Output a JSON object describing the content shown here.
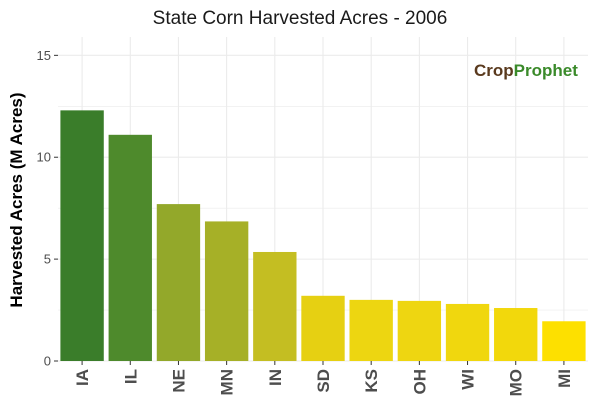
{
  "chart_data": {
    "type": "bar",
    "title": "State Corn Harvested Acres - 2006",
    "xlabel": "",
    "ylabel": "Harvested Acres (M Acres)",
    "categories": [
      "IA",
      "IL",
      "NE",
      "MN",
      "IN",
      "SD",
      "KS",
      "OH",
      "WI",
      "MO",
      "MI"
    ],
    "values": [
      12.3,
      11.1,
      7.7,
      6.85,
      5.35,
      3.2,
      3.0,
      2.95,
      2.8,
      2.6,
      1.95
    ],
    "ylim": [
      0,
      15.9
    ],
    "yticks": [
      0,
      5,
      10,
      15
    ],
    "grid": true,
    "legend": "none",
    "colors": [
      "#3a7d2a",
      "#4e8a2c",
      "#93a82a",
      "#a6b027",
      "#c4be22",
      "#e6d012",
      "#edd611",
      "#eed611",
      "#f0d70e",
      "#f2d80c",
      "#fde000"
    ],
    "gridline_color": "#ebebeb",
    "panel_background": "#ffffff"
  },
  "logo": {
    "part1": "Crop",
    "part2": "Prophet"
  }
}
